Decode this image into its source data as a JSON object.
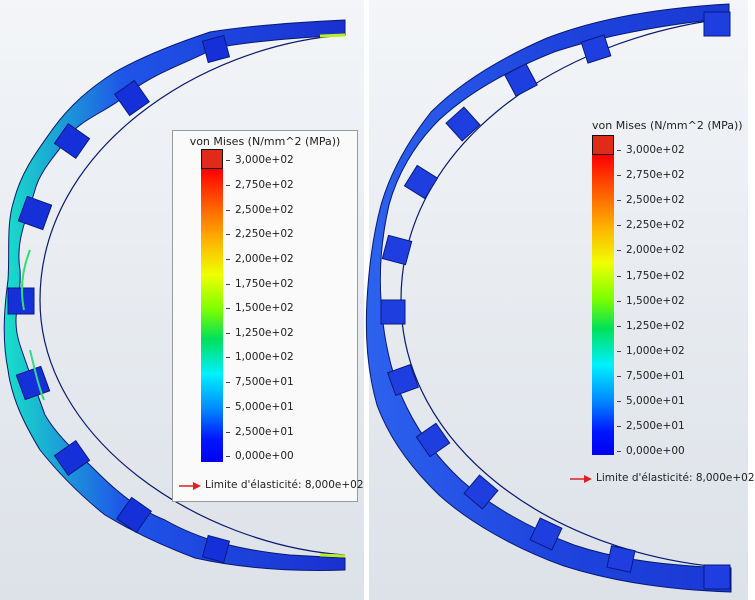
{
  "left_legend": {
    "title": "von Mises (N/mm^2 (MPa))",
    "ticks": [
      "3,000e+02",
      "2,750e+02",
      "2,500e+02",
      "2,250e+02",
      "2,000e+02",
      "1,750e+02",
      "1,500e+02",
      "1,250e+02",
      "1,000e+02",
      "7,500e+01",
      "5,000e+01",
      "2,500e+01",
      "0,000e+00"
    ],
    "yield_text": "Limite d'élasticité: 8,000e+02"
  },
  "right_legend": {
    "title": "von Mises (N/mm^2 (MPa))",
    "ticks": [
      "3,000e+02",
      "2,750e+02",
      "2,500e+02",
      "2,250e+02",
      "2,000e+02",
      "1,750e+02",
      "1,500e+02",
      "1,250e+02",
      "1,000e+02",
      "7,500e+01",
      "5,000e+01",
      "2,500e+01",
      "0,000e+00"
    ],
    "yield_text": "Limite d'élasticité: 8,000e+02"
  },
  "colors": {
    "max": "#e02a1a",
    "mid": "#f0ff00",
    "min": "#0000ee",
    "part_base": "#1a3ad8",
    "arrow": "#e02020"
  }
}
